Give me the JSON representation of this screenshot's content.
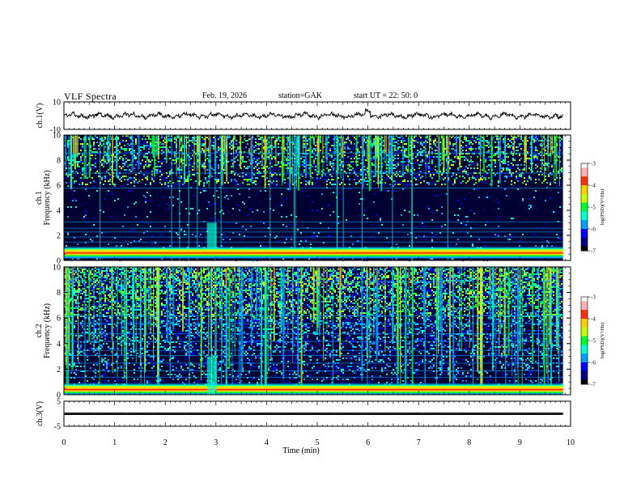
{
  "header": {
    "title": "VLF  Spectra",
    "date": "Feb. 19, 2026",
    "station": "station=GAK",
    "start_ut": "start  UT  =   22: 50: 0"
  },
  "colors": {
    "spectrogram_background": "#000033",
    "colormap": [
      "#000000",
      "#0a0a80",
      "#0000ff",
      "#00a0ff",
      "#00ffd0",
      "#00ff30",
      "#c8ff00",
      "#ffd000",
      "#ff3000",
      "#ffffff"
    ]
  },
  "chart_data": [
    {
      "id": "ch1-waveform",
      "type": "line",
      "ylabel": "ch.1(V)",
      "ylim": [
        -10,
        10
      ],
      "yticks": [
        "10",
        "-10"
      ],
      "xlim": [
        0,
        10
      ],
      "x_end": 9.85,
      "baseline": 0,
      "amplitude": 2.5
    },
    {
      "id": "ch1-spectrogram",
      "type": "heatmap",
      "ylabel_channel": "ch.1",
      "ylabel": "Frequency (kHz)",
      "ylim": [
        0,
        10
      ],
      "yticks": [
        "0",
        "2",
        "4",
        "6",
        "8",
        "10"
      ],
      "xlim": [
        0,
        10
      ],
      "x_end": 9.85,
      "colorbar": {
        "label": "log(PSD)(V²/Hz)",
        "range": [
          -7,
          -3
        ],
        "ticks": [
          "-3",
          "-4",
          "-5",
          "-6",
          "-7"
        ]
      },
      "features": {
        "strong_band_khz": [
          0.2,
          1.0
        ],
        "quiet_band_khz": [
          2.5,
          5.5
        ],
        "burst_time_min": 2.92
      }
    },
    {
      "id": "ch2-spectrogram",
      "type": "heatmap",
      "ylabel_channel": "ch.2",
      "ylabel": "Frequency (kHz)",
      "ylim": [
        0,
        10
      ],
      "yticks": [
        "0",
        "2",
        "4",
        "6",
        "8",
        "10"
      ],
      "xlim": [
        0,
        10
      ],
      "x_end": 9.85,
      "colorbar": {
        "label": "log(PSD)(V²/Hz)",
        "range": [
          -7,
          -3
        ],
        "ticks": [
          "-3",
          "-4",
          "-5",
          "-6",
          "-7"
        ]
      },
      "features": {
        "strong_band_khz": [
          0.0,
          0.8
        ],
        "burst_time_min": 2.92
      }
    },
    {
      "id": "ch3-waveform",
      "type": "line",
      "ylabel": "ch.3(V)",
      "ylim": [
        -5,
        5
      ],
      "yticks": [
        "5",
        "-5"
      ],
      "xlim": [
        0,
        10
      ],
      "x_end": 9.85,
      "baseline": 0
    }
  ],
  "x_axis": {
    "label": "Time  (min)",
    "ticks": [
      "0",
      "1",
      "2",
      "3",
      "4",
      "5",
      "6",
      "7",
      "8",
      "9",
      "10"
    ]
  }
}
